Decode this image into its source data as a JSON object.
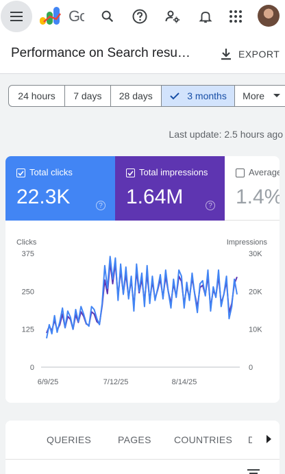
{
  "app": {
    "logo_text": "Go"
  },
  "header": {
    "title": "Performance on Search resu…",
    "export_label": "EXPORT"
  },
  "toolbar": {
    "icons": [
      "menu-icon",
      "search-icon",
      "help-icon",
      "manage-accounts-icon",
      "notifications-icon",
      "apps-grid-icon"
    ]
  },
  "filters": [
    {
      "label": "24 hours",
      "selected": false
    },
    {
      "label": "7 days",
      "selected": false
    },
    {
      "label": "28 days",
      "selected": false
    },
    {
      "label": "3 months",
      "selected": true
    },
    {
      "label": "More",
      "selected": false
    }
  ],
  "last_update": "Last update: 2.5 hours ago",
  "metrics": {
    "clicks": {
      "label": "Total clicks",
      "value": "22.3K",
      "color": "#4285f4",
      "checked": true
    },
    "impressions": {
      "label": "Total impressions",
      "value": "1.64M",
      "color": "#5e35b1",
      "checked": true
    },
    "ctr": {
      "label": "Average CTR",
      "value": "1.4%",
      "checked": false
    }
  },
  "chart_data": {
    "type": "line",
    "left_axis_label": "Clicks",
    "right_axis_label": "Impressions",
    "left_ticks": [
      "375",
      "250",
      "125",
      "0"
    ],
    "right_ticks": [
      "30K",
      "20K",
      "10K",
      "0"
    ],
    "ylim_left": [
      0,
      375
    ],
    "ylim_right": [
      0,
      30000
    ],
    "x_ticks": [
      "6/9/25",
      "7/12/25",
      "8/14/25"
    ],
    "series": [
      {
        "name": "Clicks",
        "color": "#4285f4",
        "values": [
          95,
          140,
          110,
          170,
          115,
          150,
          195,
          130,
          185,
          165,
          125,
          190,
          150,
          200,
          175,
          145,
          135,
          200,
          190,
          160,
          140,
          210,
          335,
          260,
          365,
          290,
          360,
          220,
          340,
          240,
          330,
          225,
          300,
          185,
          340,
          250,
          310,
          200,
          335,
          210,
          300,
          220,
          260,
          305,
          225,
          320,
          250,
          195,
          290,
          230,
          320,
          300,
          195,
          280,
          220,
          310,
          240,
          180,
          275,
          285,
          235,
          320,
          185,
          265,
          230,
          320,
          200,
          240,
          300,
          160,
          200,
          290,
          240
        ]
      },
      {
        "name": "Impressions",
        "color": "#5e35b1",
        "values": [
          9000,
          10800,
          9600,
          12400,
          9800,
          11200,
          14000,
          10400,
          13400,
          12600,
          10000,
          13800,
          11800,
          14600,
          13400,
          11400,
          11000,
          14600,
          14000,
          12000,
          11400,
          16200,
          23000,
          19400,
          27600,
          22000,
          27400,
          18600,
          25600,
          19400,
          24600,
          18400,
          23000,
          16000,
          25400,
          19600,
          23200,
          17400,
          24600,
          17600,
          22600,
          18000,
          20400,
          23200,
          18400,
          24000,
          20000,
          16800,
          22000,
          18600,
          24000,
          22600,
          16600,
          21200,
          18200,
          23600,
          19400,
          15800,
          21000,
          21600,
          19000,
          24000,
          15800,
          20400,
          18600,
          24000,
          16800,
          19200,
          22600,
          14400,
          16800,
          22000,
          23800
        ]
      }
    ]
  },
  "tabs": [
    "QUERIES",
    "PAGES",
    "COUNTRIES",
    "D"
  ]
}
